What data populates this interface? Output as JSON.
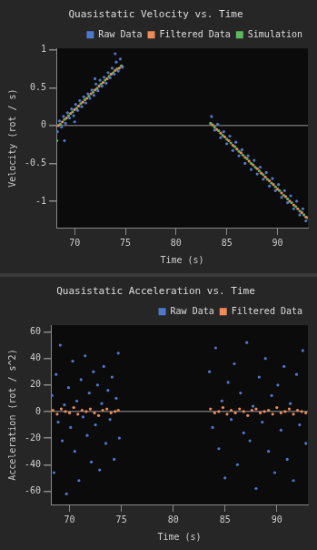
{
  "chart_data": [
    {
      "type": "scatter",
      "title": "Quasistatic Velocity vs. Time",
      "x_label": "Time (s)",
      "y_label": "Velocity (rot / s)",
      "xlim": [
        68.2,
        93
      ],
      "xticks": [
        70,
        75,
        80,
        85,
        90
      ],
      "ylim": [
        -1.35,
        1.02
      ],
      "yticks": [
        -1,
        -0.5,
        0,
        0.5,
        1
      ],
      "grid": false,
      "legend": "upper right",
      "marker": "circle",
      "series": [
        {
          "name": "Raw Data",
          "color": "#4e79c8",
          "x": [
            68.3,
            68.5,
            68.7,
            68.9,
            69.0,
            69.1,
            69.3,
            69.5,
            69.7,
            69.9,
            70.0,
            70.1,
            70.3,
            70.5,
            70.7,
            70.9,
            71.1,
            71.3,
            71.5,
            71.7,
            71.9,
            72.0,
            72.1,
            72.3,
            72.5,
            72.7,
            72.9,
            73.1,
            73.3,
            73.5,
            73.7,
            73.9,
            74.0,
            74.1,
            74.3,
            74.5,
            74.7,
            83.5,
            83.8,
            84.1,
            84.4,
            84.7,
            85.0,
            85.3,
            85.6,
            85.9,
            86.2,
            86.5,
            86.8,
            87.1,
            87.4,
            87.7,
            88.0,
            88.3,
            88.6,
            88.9,
            89.2,
            89.5,
            89.8,
            90.1,
            90.4,
            90.7,
            91.0,
            91.3,
            91.6,
            91.9,
            92.2,
            92.5,
            92.8
          ],
          "values": [
            -0.08,
            0.06,
            -0.02,
            0.12,
            -0.2,
            0.03,
            0.17,
            0.1,
            0.22,
            0.13,
            0.05,
            0.28,
            0.2,
            0.33,
            0.25,
            0.38,
            0.3,
            0.42,
            0.36,
            0.47,
            0.4,
            0.62,
            0.55,
            0.46,
            0.6,
            0.52,
            0.64,
            0.56,
            0.7,
            0.63,
            0.76,
            0.68,
            0.95,
            0.84,
            0.72,
            0.88,
            0.77,
            0.12,
            -0.06,
            0.02,
            -0.16,
            -0.08,
            -0.24,
            -0.14,
            -0.33,
            -0.22,
            -0.4,
            -0.32,
            -0.5,
            -0.4,
            -0.58,
            -0.46,
            -0.64,
            -0.55,
            -0.71,
            -0.62,
            -0.8,
            -0.7,
            -0.86,
            -0.78,
            -0.95,
            -0.86,
            -1.02,
            -0.93,
            -1.1,
            -1.0,
            -1.18,
            -1.1,
            -1.26
          ]
        },
        {
          "name": "Filtered Data",
          "color": "#ef8a5a",
          "x": [
            68.4,
            68.8,
            69.2,
            69.6,
            70.0,
            70.4,
            70.8,
            71.2,
            71.6,
            72.0,
            72.4,
            72.8,
            73.2,
            73.6,
            74.0,
            74.4,
            74.7,
            83.6,
            84.0,
            84.4,
            84.8,
            85.2,
            85.6,
            86.0,
            86.4,
            86.8,
            87.2,
            87.6,
            88.0,
            88.4,
            88.8,
            89.2,
            89.6,
            90.0,
            90.4,
            90.8,
            91.2,
            91.6,
            92.0,
            92.4,
            92.8
          ],
          "values": [
            0.0,
            0.05,
            0.1,
            0.16,
            0.21,
            0.26,
            0.31,
            0.36,
            0.42,
            0.47,
            0.52,
            0.57,
            0.62,
            0.68,
            0.73,
            0.76,
            0.78,
            0.01,
            -0.05,
            -0.1,
            -0.15,
            -0.2,
            -0.26,
            -0.31,
            -0.36,
            -0.42,
            -0.47,
            -0.52,
            -0.57,
            -0.63,
            -0.68,
            -0.73,
            -0.78,
            -0.84,
            -0.89,
            -0.94,
            -1.0,
            -1.05,
            -1.1,
            -1.15,
            -1.21
          ]
        },
        {
          "name": "Simulation",
          "color": "#5cb85f",
          "x": [
            68.25,
            68.6,
            69.0,
            69.4,
            69.8,
            70.2,
            70.6,
            71.0,
            71.4,
            71.8,
            72.2,
            72.6,
            73.0,
            73.4,
            73.8,
            74.2,
            74.6,
            83.4,
            83.8,
            84.2,
            84.6,
            85.0,
            85.4,
            85.8,
            86.2,
            86.6,
            87.0,
            87.4,
            87.8,
            88.2,
            88.6,
            89.0,
            89.4,
            89.8,
            90.2,
            90.6,
            91.0,
            91.4,
            91.8,
            92.2,
            92.6,
            93.0
          ],
          "values": [
            -0.2,
            0.02,
            0.08,
            0.13,
            0.18,
            0.23,
            0.29,
            0.34,
            0.39,
            0.44,
            0.49,
            0.55,
            0.6,
            0.65,
            0.7,
            0.75,
            0.79,
            0.03,
            -0.02,
            -0.07,
            -0.13,
            -0.18,
            -0.23,
            -0.28,
            -0.34,
            -0.39,
            -0.44,
            -0.5,
            -0.55,
            -0.6,
            -0.65,
            -0.71,
            -0.76,
            -0.81,
            -0.86,
            -0.92,
            -0.97,
            -1.02,
            -1.07,
            -1.13,
            -1.18,
            -1.22
          ]
        }
      ]
    },
    {
      "type": "scatter",
      "title": "Quasistatic Acceleration vs. Time",
      "x_label": "Time (s)",
      "y_label": "Acceleration (rot / s^2)",
      "xlim": [
        68.2,
        93
      ],
      "xticks": [
        70,
        75,
        80,
        85,
        90
      ],
      "ylim": [
        -70,
        65
      ],
      "yticks": [
        -60,
        -40,
        -20,
        0,
        20,
        40,
        60
      ],
      "grid": false,
      "legend": "upper right",
      "marker": "circle",
      "series": [
        {
          "name": "Raw Data",
          "color": "#4e79c8",
          "x": [
            68.3,
            68.5,
            68.7,
            68.9,
            69.1,
            69.3,
            69.5,
            69.7,
            69.9,
            70.1,
            70.3,
            70.5,
            70.7,
            70.9,
            71.1,
            71.3,
            71.5,
            71.7,
            71.9,
            72.1,
            72.3,
            72.5,
            72.7,
            72.9,
            73.1,
            73.3,
            73.5,
            73.7,
            73.9,
            74.1,
            74.3,
            74.5,
            74.7,
            74.8,
            83.5,
            83.8,
            84.1,
            84.4,
            84.7,
            85.0,
            85.3,
            85.6,
            85.9,
            86.2,
            86.5,
            86.8,
            87.1,
            87.4,
            87.7,
            88.0,
            88.3,
            88.6,
            88.9,
            89.2,
            89.5,
            89.8,
            90.1,
            90.4,
            90.7,
            91.0,
            91.3,
            91.6,
            91.9,
            92.2,
            92.5,
            92.8
          ],
          "values": [
            12,
            -46,
            28,
            -8,
            50,
            -22,
            5,
            -62,
            18,
            -12,
            38,
            -30,
            8,
            -52,
            24,
            -4,
            42,
            -18,
            14,
            -38,
            30,
            -10,
            20,
            -44,
            6,
            34,
            -24,
            16,
            -6,
            26,
            -36,
            10,
            44,
            -20,
            30,
            -12,
            48,
            -28,
            8,
            -50,
            22,
            -6,
            36,
            -40,
            14,
            -16,
            52,
            -22,
            4,
            -58,
            26,
            -8,
            40,
            -30,
            12,
            -46,
            20,
            -14,
            34,
            -36,
            6,
            -52,
            28,
            -10,
            46,
            -24
          ]
        },
        {
          "name": "Filtered Data",
          "color": "#ef8a5a",
          "x": [
            68.4,
            68.8,
            69.2,
            69.6,
            70.0,
            70.4,
            70.8,
            71.2,
            71.6,
            72.0,
            72.4,
            72.8,
            73.2,
            73.6,
            74.0,
            74.4,
            74.7,
            83.6,
            84.0,
            84.4,
            84.8,
            85.2,
            85.6,
            86.0,
            86.4,
            86.8,
            87.2,
            87.6,
            88.0,
            88.4,
            88.8,
            89.2,
            89.6,
            90.0,
            90.4,
            90.8,
            91.2,
            91.6,
            92.0,
            92.4,
            92.8
          ],
          "values": [
            1,
            -2,
            2,
            0,
            -1,
            3,
            -2,
            1,
            0,
            2,
            -1,
            -3,
            1,
            2,
            -1,
            0,
            1,
            2,
            -1,
            0,
            3,
            -2,
            1,
            -1,
            2,
            0,
            -3,
            1,
            2,
            -1,
            0,
            1,
            -2,
            3,
            -1,
            0,
            2,
            -2,
            1,
            0,
            -1
          ]
        }
      ]
    }
  ]
}
